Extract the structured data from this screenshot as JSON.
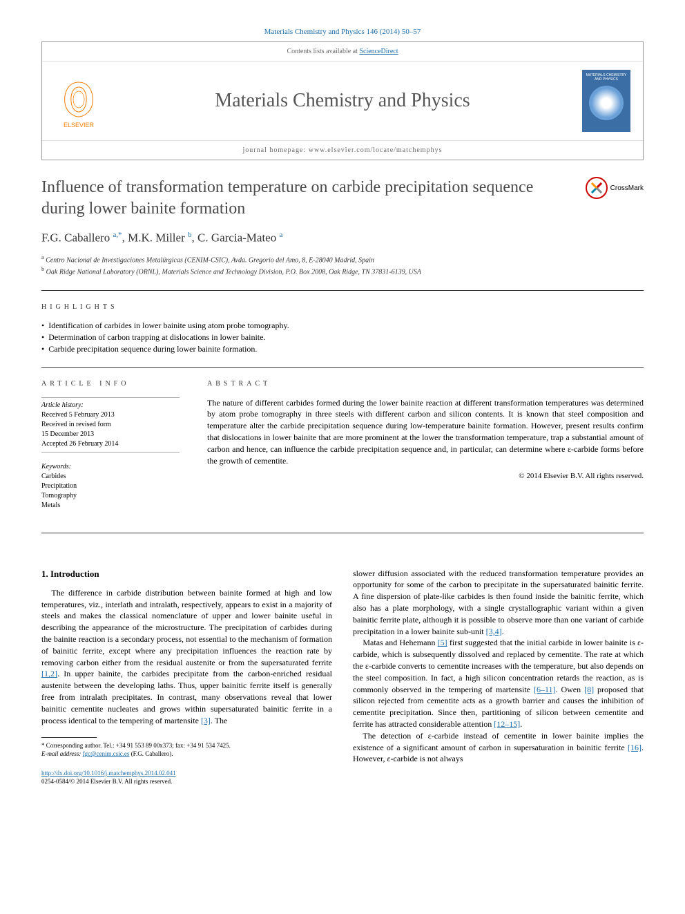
{
  "citation": "Materials Chemistry and Physics 146 (2014) 50–57",
  "header": {
    "contents_line_prefix": "Contents lists available at ",
    "contents_link": "ScienceDirect",
    "journal_title": "Materials Chemistry and Physics",
    "homepage_prefix": "journal homepage: ",
    "homepage_url": "www.elsevier.com/locate/matchemphys",
    "publisher_name": "ELSEVIER",
    "cover_text": "MATERIALS CHEMISTRY AND PHYSICS"
  },
  "crossmark_label": "CrossMark",
  "title": "Influence of transformation temperature on carbide precipitation sequence during lower bainite formation",
  "authors_html": "F.G. Caballero <sup>a,*</sup>, M.K. Miller <sup>b</sup>, C. Garcia-Mateo <sup>a</sup>",
  "affiliations": [
    "a Centro Nacional de Investigaciones Metalúrgicas (CENIM-CSIC), Avda. Gregorio del Amo, 8, E-28040 Madrid, Spain",
    "b Oak Ridge National Laboratory (ORNL), Materials Science and Technology Division, P.O. Box 2008, Oak Ridge, TN 37831-6139, USA"
  ],
  "highlights_label": "HIGHLIGHTS",
  "highlights": [
    "Identification of carbides in lower bainite using atom probe tomography.",
    "Determination of carbon trapping at dislocations in lower bainite.",
    "Carbide precipitation sequence during lower bainite formation."
  ],
  "article_info_label": "ARTICLE INFO",
  "history_label": "Article history:",
  "history": [
    "Received 5 February 2013",
    "Received in revised form",
    "15 December 2013",
    "Accepted 26 February 2014"
  ],
  "keywords_label": "Keywords:",
  "keywords": [
    "Carbides",
    "Precipitation",
    "Tomography",
    "Metals"
  ],
  "abstract_label": "ABSTRACT",
  "abstract": "The nature of different carbides formed during the lower bainite reaction at different transformation temperatures was determined by atom probe tomography in three steels with different carbon and silicon contents. It is known that steel composition and temperature alter the carbide precipitation sequence during low-temperature bainite formation. However, present results confirm that dislocations in lower bainite that are more prominent at the lower the transformation temperature, trap a substantial amount of carbon and hence, can influence the carbide precipitation sequence and, in particular, can determine where ε-carbide forms before the growth of cementite.",
  "copyright": "© 2014 Elsevier B.V. All rights reserved.",
  "section1_heading": "1.  Introduction",
  "col1_p1a": "The difference in carbide distribution between bainite formed at high and low temperatures, viz., interlath and intralath, respectively, appears to exist in a majority of steels and makes the classical nomenclature of upper and lower bainite useful in describing the appearance of the microstructure. The precipitation of carbides during the bainite reaction is a secondary process, not essential to the mechanism of formation of bainitic ferrite, except where any precipitation influences the reaction rate by removing carbon either from the residual austenite or from the supersaturated ferrite ",
  "col1_ref1": "[1,2]",
  "col1_p1b": ". In upper bainite, the carbides precipitate from the carbon-enriched residual austenite between the developing laths. Thus, upper bainitic ferrite itself is generally free from intralath precipitates. In contrast, many observations reveal that lower bainitic cementite nucleates and grows within supersaturated bainitic ferrite in a process identical to the tempering of martensite ",
  "col1_ref2": "[3]",
  "col1_p1c": ". The",
  "col2_p1a": "slower diffusion associated with the reduced transformation temperature provides an opportunity for some of the carbon to precipitate in the supersaturated bainitic ferrite. A fine dispersion of plate-like carbides is then found inside the bainitic ferrite, which also has a plate morphology, with a single crystallographic variant within a given bainitic ferrite plate, although it is possible to observe more than one variant of carbide precipitation in a lower bainite sub-unit ",
  "col2_ref1": "[3,4]",
  "col2_p1b": ".",
  "col2_p2a": "Matas and Hehemann ",
  "col2_ref2": "[5]",
  "col2_p2b": " first suggested that the initial carbide in lower bainite is ε-carbide, which is subsequently dissolved and replaced by cementite. The rate at which the ε-carbide converts to cementite increases with the temperature, but also depends on the steel composition. In fact, a high silicon concentration retards the reaction, as is commonly observed in the tempering of martensite ",
  "col2_ref3": "[6–11]",
  "col2_p2c": ". Owen ",
  "col2_ref4": "[8]",
  "col2_p2d": " proposed that silicon rejected from cementite acts as a growth barrier and causes the inhibition of cementite precipitation. Since then, partitioning of silicon between cementite and ferrite has attracted considerable attention ",
  "col2_ref5": "[12–15]",
  "col2_p2e": ".",
  "col2_p3a": "The detection of ε-carbide instead of cementite in lower bainite implies the existence of a significant amount of carbon in supersaturation in bainitic ferrite ",
  "col2_ref6": "[16]",
  "col2_p3b": ". However, ε-carbide is not always",
  "footnote_marker": "* ",
  "footnote_text_a": "Corresponding author. Tel.: +34 91 553 89 00x373; fax: +34 91 534 7425.",
  "footnote_email_label": "E-mail address: ",
  "footnote_email": "fgc@cenim.csic.es",
  "footnote_name": " (F.G. Caballero).",
  "doi_url": "http://dx.doi.org/10.1016/j.matchemphys.2014.02.041",
  "issn_line": "0254-0584/© 2014 Elsevier B.V. All rights reserved."
}
